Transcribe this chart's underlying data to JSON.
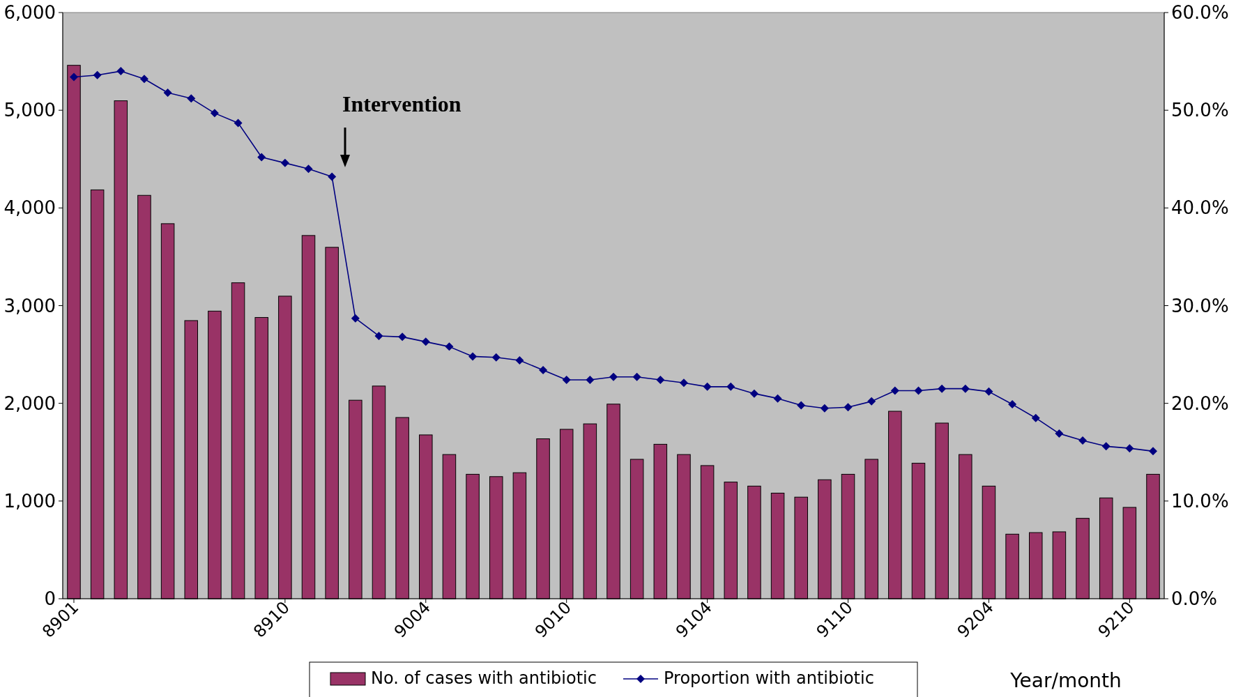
{
  "chart_data": {
    "type": "bar",
    "xlabel": "Year/month",
    "categories": [
      "8901",
      null,
      null,
      null,
      null,
      null,
      null,
      null,
      null,
      "8910",
      null,
      null,
      null,
      null,
      null,
      "9004",
      null,
      null,
      null,
      null,
      null,
      "9010",
      null,
      null,
      null,
      null,
      null,
      "9104",
      null,
      null,
      null,
      null,
      null,
      "9110",
      null,
      null,
      null,
      null,
      null,
      "9204",
      null,
      null,
      null,
      null,
      null,
      "9210",
      null
    ],
    "series": [
      {
        "name": "No. of cases with antibiotic",
        "color": "#993366",
        "values": [
          5460,
          4185,
          5097,
          4129,
          3839,
          2847,
          2944,
          3234,
          2879,
          3097,
          3718,
          3597,
          2032,
          2177,
          1855,
          1677,
          1476,
          1274,
          1250,
          1290,
          1637,
          1734,
          1790,
          1992,
          1427,
          1581,
          1476,
          1363,
          1194,
          1153,
          1081,
          1040,
          1218,
          1274,
          1427,
          1919,
          1387,
          1798,
          1476,
          1153,
          661,
          677,
          685,
          823,
          1032,
          935,
          1274
        ]
      },
      {
        "name": "Proportion with antibiotic",
        "type": "line",
        "axis": "y2",
        "color": "#000080",
        "marker": "diamond",
        "values": [
          53.4,
          53.6,
          54.0,
          53.2,
          51.8,
          51.2,
          49.7,
          48.7,
          45.2,
          44.6,
          44.0,
          43.2,
          28.7,
          26.9,
          26.8,
          26.3,
          25.8,
          24.8,
          24.7,
          24.4,
          23.4,
          22.4,
          22.4,
          22.7,
          22.7,
          22.4,
          22.1,
          21.7,
          21.7,
          21.0,
          20.5,
          19.8,
          19.5,
          19.6,
          20.2,
          21.3,
          21.3,
          21.5,
          21.5,
          21.2,
          19.9,
          18.5,
          16.9,
          16.2,
          15.6,
          15.4,
          15.1
        ]
      }
    ],
    "ylim": [
      0,
      6000
    ],
    "yticks": [
      0,
      {
        "value": 1000,
        "label": "1,000"
      },
      {
        "value": 2000,
        "label": "2,000"
      },
      {
        "value": 3000,
        "label": "3,000"
      },
      {
        "value": 4000,
        "label": "4,000"
      },
      {
        "value": 5000,
        "label": "5,000"
      },
      {
        "value": 6000,
        "label": "6,000"
      }
    ],
    "y2lim": [
      0,
      60
    ],
    "y2ticks": [
      {
        "value": 0,
        "label": "0.0%"
      },
      {
        "value": 10,
        "label": "10.0%"
      },
      {
        "value": 20,
        "label": "20.0%"
      },
      {
        "value": 30,
        "label": "30.0%"
      },
      {
        "value": 40,
        "label": "40.0%"
      },
      {
        "value": 50,
        "label": "50.0%"
      },
      {
        "value": 60,
        "label": "60.0%"
      }
    ],
    "annotations": [
      "Intervention"
    ],
    "legend": "bottom",
    "grid": false
  }
}
